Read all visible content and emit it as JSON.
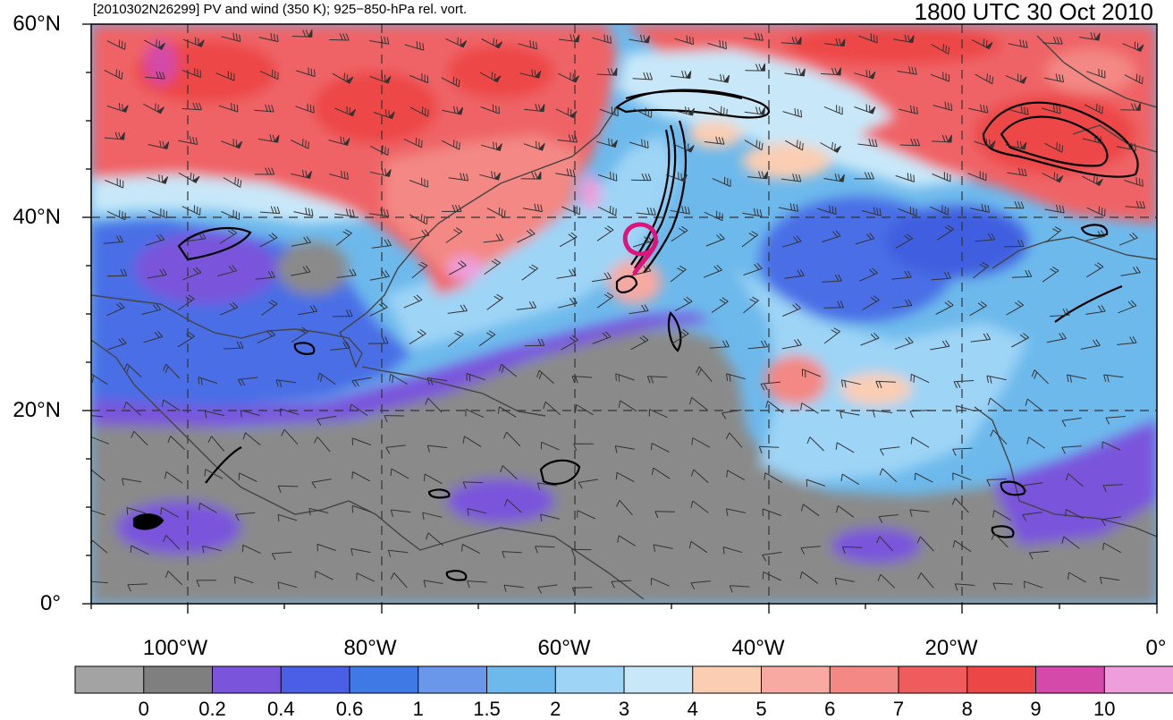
{
  "header": {
    "left_title": "[2010302N26299] PV and wind (350 K); 925−850-hPa rel. vort.",
    "right_title": "1800 UTC 30 Oct 2010"
  },
  "map": {
    "lat_labels": [
      "60°N",
      "40°N",
      "20°N",
      "0°"
    ],
    "lon_labels": [
      "100°W",
      "80°W",
      "60°W",
      "40°W",
      "20°W",
      "0°"
    ],
    "extent": {
      "lon_min": -110,
      "lon_max": 0,
      "lat_min": 0,
      "lat_max": 60
    },
    "storm_center": {
      "lon": -53,
      "lat": 37
    }
  },
  "colorbar": {
    "labels": [
      "0",
      "0.2",
      "0.4",
      "0.6",
      "1",
      "1.5",
      "2",
      "3",
      "4",
      "5",
      "6",
      "7",
      "8",
      "9",
      "10"
    ],
    "colors": [
      "#a3a3a3",
      "#7f7f7f",
      "#7a55dc",
      "#4a5ee6",
      "#3f79e6",
      "#6a97ea",
      "#6db9ec",
      "#9ed4f6",
      "#c8e8f9",
      "#fbcdb2",
      "#f7a9a2",
      "#f38884",
      "#ef5c5e",
      "#ed4646",
      "#d449a9",
      "#ee9edb"
    ]
  },
  "colors": {
    "gray_low": "#8a8a8a",
    "purple": "#7a55dc",
    "blue": "#4a6ee6",
    "light_blue": "#9ed4f6",
    "red": "#ef6466",
    "storm_track": "#e0137a"
  }
}
